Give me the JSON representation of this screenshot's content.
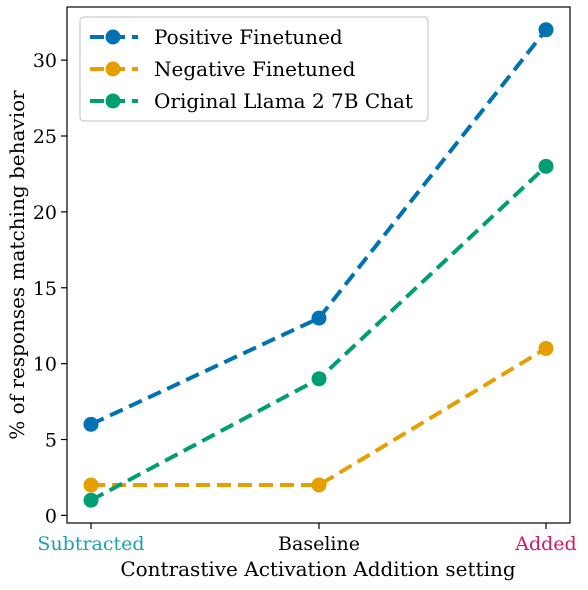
{
  "chart_data": {
    "type": "line",
    "title": "",
    "xlabel": "Contrastive Activation Addition setting",
    "ylabel": "% of responses matching behavior",
    "categories": [
      "Subtracted",
      "Baseline",
      "Added"
    ],
    "category_colors": [
      "#1a9fb5",
      "#000000",
      "#d1176b"
    ],
    "ylim": [
      -0.5,
      33.5
    ],
    "yticks": [
      0,
      5,
      10,
      15,
      20,
      25,
      30
    ],
    "grid": false,
    "legend_position": "top-left",
    "line_style": "dashed",
    "series": [
      {
        "name": "Positive Finetuned",
        "color": "#0072b2",
        "values": [
          6,
          13,
          32
        ]
      },
      {
        "name": "Negative Finetuned",
        "color": "#e69f00",
        "values": [
          2,
          2,
          11
        ]
      },
      {
        "name": "Original Llama 2 7B Chat",
        "color": "#009e73",
        "values": [
          1,
          9,
          23
        ]
      }
    ]
  }
}
